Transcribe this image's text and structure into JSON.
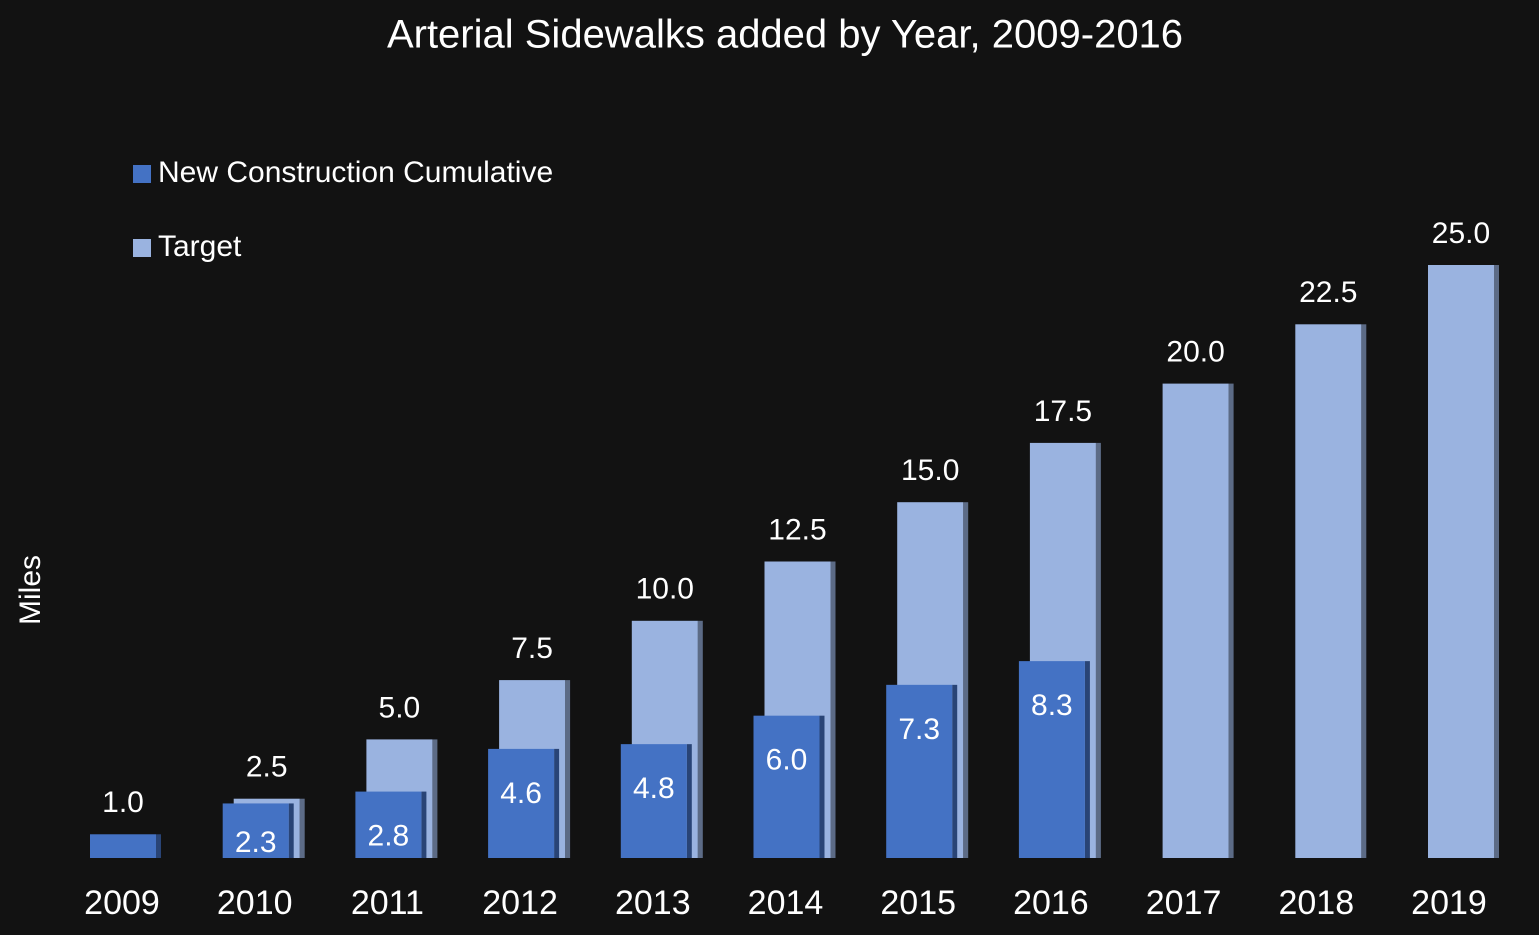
{
  "chart_data": {
    "type": "bar",
    "title": "Arterial Sidewalks added by Year, 2009-2016",
    "y_label": "Miles",
    "categories": [
      "2009",
      "2010",
      "2011",
      "2012",
      "2013",
      "2014",
      "2015",
      "2016",
      "2017",
      "2018",
      "2019"
    ],
    "series": [
      {
        "name": "New Construction Cumulative",
        "color": "#4472c4",
        "values": [
          1.0,
          2.3,
          2.8,
          4.6,
          4.8,
          6.0,
          7.3,
          8.3,
          null,
          null,
          null
        ],
        "value_labels": [
          "1.0",
          "2.3",
          "2.8",
          "4.6",
          "4.8",
          "6.0",
          "7.3",
          "8.3",
          null,
          null,
          null
        ]
      },
      {
        "name": "Target",
        "color": "#9ab3e0",
        "values": [
          null,
          2.5,
          5.0,
          7.5,
          10.0,
          12.5,
          15.0,
          17.5,
          20.0,
          22.5,
          25.0
        ],
        "value_labels": [
          null,
          "2.5",
          "5.0",
          "7.5",
          "10.0",
          "12.5",
          "15.0",
          "17.5",
          "20.0",
          "22.5",
          "25.0"
        ]
      }
    ],
    "ylim": [
      0,
      25
    ],
    "legend": "top-left"
  }
}
